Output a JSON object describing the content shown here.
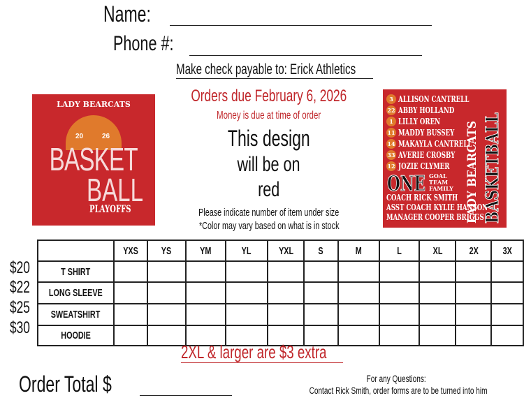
{
  "header": {
    "name_label": "Name:",
    "phone_label": "Phone #:",
    "check_payable": "Make check payable to: Erick Athletics"
  },
  "center": {
    "orders_due": "Orders due February 6, 2026",
    "money_due": "Money is due at time of order",
    "design_line1": "This design",
    "design_line2": "will be on",
    "design_line3": "red",
    "indicate": "Please indicate number of item under size",
    "color_note": "*Color may vary based on what is in stock"
  },
  "left_logo": {
    "top": "LADY BEARCATS",
    "year_left": "20",
    "year_right": "26",
    "word1": "BASKET",
    "word2": "BALL",
    "bottom": "PLAYOFFS"
  },
  "right_logo": {
    "players": [
      {
        "number": "3",
        "name": "ALLISON CANTRELL"
      },
      {
        "number": "22",
        "name": "ABBY HOLLAND"
      },
      {
        "number": "1",
        "name": "LILLY OREN"
      },
      {
        "number": "11",
        "name": "MADDY BUSSEY"
      },
      {
        "number": "14",
        "name": "MAKAYLA CANTRELL"
      },
      {
        "number": "33",
        "name": "AVERIE CROSBY"
      },
      {
        "number": "12",
        "name": "JOZIE CLYMER"
      }
    ],
    "one": "ONE",
    "slogan1": "GOAL",
    "slogan2": "TEAM",
    "slogan3": "FAMILY",
    "coach": "COACH RICK SMITH",
    "asst_coach": "ASST COACH KYLIE HANSON",
    "manager": "MANAGER COOPER BRIGGS",
    "vertical1": "LADY BEARCATS",
    "vertical2": "BASKETBALL"
  },
  "table": {
    "sizes": [
      "YXS",
      "YS",
      "YM",
      "YL",
      "YXL",
      "S",
      "M",
      "L",
      "XL",
      "2X",
      "3X"
    ],
    "rows": [
      {
        "price": "$20",
        "item": "T SHIRT"
      },
      {
        "price": "$22",
        "item": "LONG SLEEVE"
      },
      {
        "price": "$25",
        "item": "SWEATSHIRT"
      },
      {
        "price": "$30",
        "item": "HOODIE"
      }
    ]
  },
  "extra_note": "2XL & larger are $3 extra",
  "footer": {
    "order_total": "Order Total $",
    "questions1": "For any Questions:",
    "questions2": "Contact Rick Smith, order forms are to be turned into him"
  },
  "colors": {
    "accent_red": "#c0262a",
    "logo_red": "#c8282c",
    "ball_orange": "#e07a2c"
  }
}
